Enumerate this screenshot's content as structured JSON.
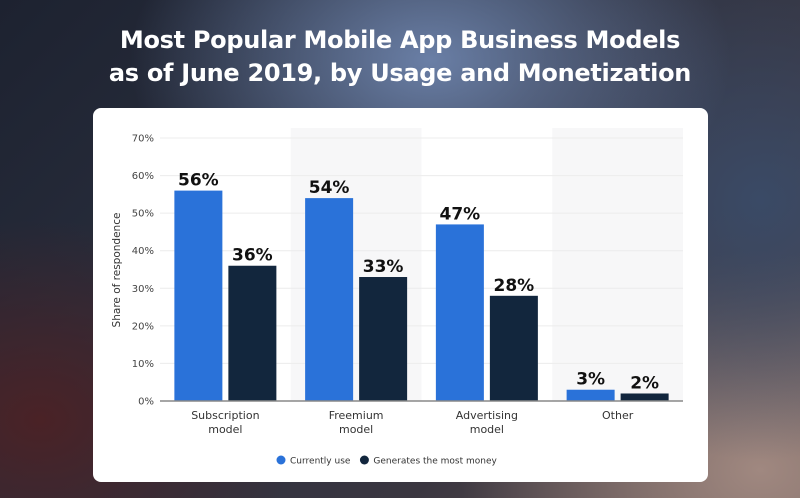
{
  "title_lines": [
    "Most Popular Mobile App Business Models",
    "as of June 2019, by Usage and Monetization"
  ],
  "chart_data": {
    "type": "bar",
    "title": "Most Popular Mobile App Business Models as of June 2019, by Usage and Monetization",
    "categories": [
      [
        "Subscription",
        "model"
      ],
      [
        "Freemium",
        "model"
      ],
      [
        "Advertising",
        "model"
      ],
      [
        "Other"
      ]
    ],
    "series": [
      {
        "name": "Currently use",
        "values": [
          56,
          54,
          47,
          3
        ],
        "color": "#2a72d9"
      },
      {
        "name": "Generates the most money",
        "values": [
          36,
          33,
          28,
          2
        ],
        "color": "#12263d"
      }
    ],
    "data_labels": [
      [
        "56%",
        "54%",
        "47%",
        "3%"
      ],
      [
        "36%",
        "33%",
        "28%",
        "2%"
      ]
    ],
    "ylabel": "Share of respondence",
    "xlabel": "",
    "ylim": [
      0,
      70
    ],
    "yticks": [
      "0%",
      "10%",
      "20%",
      "30%",
      "40%",
      "50%",
      "60%",
      "70%"
    ],
    "grid": true,
    "legend_position": "bottom"
  }
}
